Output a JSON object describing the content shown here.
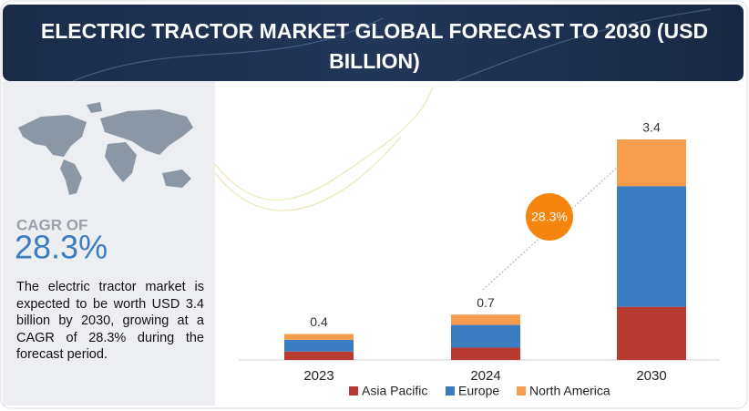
{
  "header": {
    "title": "ELECTRIC TRACTOR MARKET GLOBAL FORECAST TO 2030 (USD BILLION)"
  },
  "left_panel": {
    "cagr_label": "CAGR OF",
    "cagr_value": "28.3%",
    "description": "The electric tractor market is expected to be worth USD 3.4 billion by 2030, growing at a CAGR of 28.3% during the forecast period."
  },
  "chart_data": {
    "type": "stacked_bar",
    "categories": [
      "2023",
      "2024",
      "2030"
    ],
    "series": [
      {
        "name": "Asia Pacific",
        "color": "#b83b32",
        "values": [
          0.13,
          0.19,
          0.82
        ]
      },
      {
        "name": "Europe",
        "color": "#3b7dc0",
        "values": [
          0.18,
          0.35,
          1.86
        ]
      },
      {
        "name": "North America",
        "color": "#f59d4d",
        "values": [
          0.09,
          0.16,
          0.72
        ]
      }
    ],
    "totals": [
      0.4,
      0.7,
      3.4
    ],
    "ylim": [
      0,
      3.4
    ],
    "annotation": "28.3%",
    "legend": "bottom"
  }
}
